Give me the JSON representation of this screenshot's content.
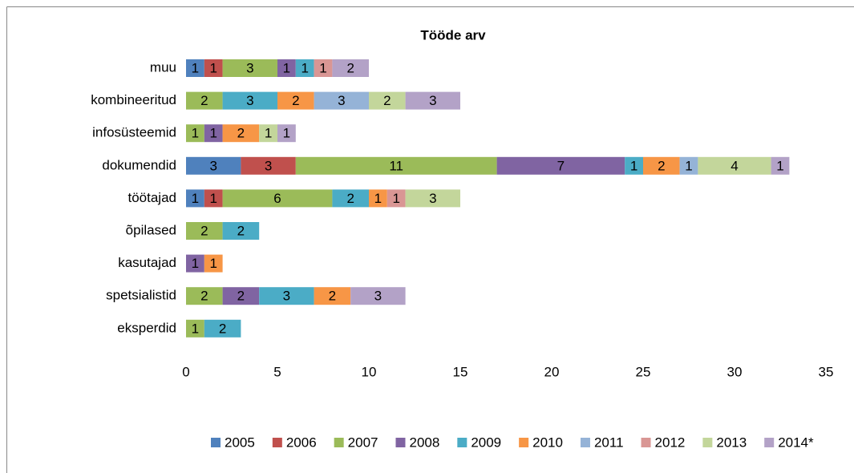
{
  "chart_data": {
    "type": "bar",
    "orientation": "horizontal",
    "stacked": true,
    "title": "Tööde arv",
    "categories": [
      "muu",
      "kombineeritud",
      "infosüsteemid",
      "dokumendid",
      "töötajad",
      "õpilased",
      "kasutajad",
      "spetsialistid",
      "eksperdid"
    ],
    "series": [
      {
        "name": "2005",
        "color": "#4f81bd",
        "values": [
          1,
          null,
          null,
          3,
          1,
          null,
          null,
          null,
          null
        ]
      },
      {
        "name": "2006",
        "color": "#c0504d",
        "values": [
          1,
          null,
          null,
          3,
          1,
          null,
          null,
          null,
          null
        ]
      },
      {
        "name": "2007",
        "color": "#9bbb59",
        "values": [
          3,
          2,
          1,
          11,
          6,
          2,
          null,
          2,
          1
        ]
      },
      {
        "name": "2008",
        "color": "#8064a2",
        "values": [
          1,
          null,
          1,
          7,
          null,
          null,
          1,
          2,
          null
        ]
      },
      {
        "name": "2009",
        "color": "#4bacc6",
        "values": [
          1,
          3,
          null,
          1,
          2,
          2,
          null,
          3,
          2
        ]
      },
      {
        "name": "2010",
        "color": "#f79646",
        "values": [
          null,
          2,
          2,
          2,
          1,
          null,
          1,
          2,
          null
        ]
      },
      {
        "name": "2011",
        "color": "#95b3d7",
        "values": [
          null,
          3,
          null,
          1,
          null,
          null,
          null,
          null,
          null
        ]
      },
      {
        "name": "2012",
        "color": "#d99694",
        "values": [
          1,
          null,
          null,
          null,
          1,
          null,
          null,
          null,
          null
        ]
      },
      {
        "name": "2013",
        "color": "#c3d69b",
        "values": [
          null,
          2,
          1,
          4,
          3,
          null,
          null,
          null,
          null
        ]
      },
      {
        "name": "2014*",
        "color": "#b3a2c7",
        "values": [
          2,
          3,
          1,
          1,
          null,
          null,
          null,
          3,
          null
        ]
      }
    ],
    "xlim": [
      0,
      35
    ],
    "xticks": [
      0,
      5,
      10,
      15,
      20,
      25,
      30,
      35
    ],
    "grid": false,
    "legend": "bottom",
    "data_labels": true
  }
}
